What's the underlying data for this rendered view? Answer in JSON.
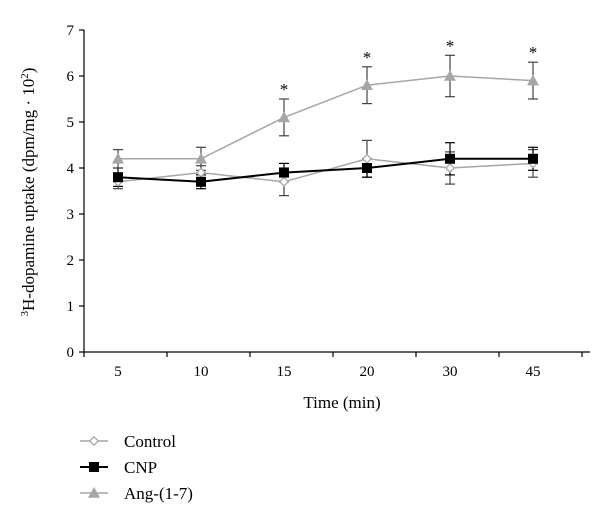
{
  "chart_data": {
    "type": "line",
    "x": [
      "5",
      "10",
      "15",
      "20",
      "30",
      "45"
    ],
    "xlabel": "Time (min)",
    "ylabel": {
      "superscript": "3",
      "text": "H-dopamine uptake (dpm/mg · 10",
      "superscript_end": "2",
      "close": ")"
    },
    "ylim": [
      0,
      7
    ],
    "yticks": [
      "0",
      "1",
      "2",
      "3",
      "4",
      "5",
      "6",
      "7"
    ],
    "grid": false,
    "legend_position": "bottom-left",
    "series": [
      {
        "name": "Control",
        "marker": "diamond-open",
        "color": "#a6a6a6",
        "values": [
          3.7,
          3.9,
          3.7,
          4.2,
          4.0,
          4.1
        ],
        "errors": [
          0.15,
          0.15,
          0.3,
          0.4,
          0.35,
          0.3
        ]
      },
      {
        "name": "CNP",
        "marker": "square-filled",
        "color": "#000000",
        "values": [
          3.8,
          3.7,
          3.9,
          4.0,
          4.2,
          4.2
        ],
        "errors": [
          0.2,
          0.15,
          0.2,
          0.2,
          0.35,
          0.25
        ]
      },
      {
        "name": "Ang-(1-7)",
        "marker": "triangle-filled",
        "color": "#a6a6a6",
        "values": [
          4.2,
          4.2,
          5.1,
          5.8,
          6.0,
          5.9
        ],
        "errors": [
          0.2,
          0.25,
          0.4,
          0.4,
          0.45,
          0.4
        ]
      }
    ],
    "annotations": [
      {
        "x": "15",
        "text": "*",
        "y": 5.5
      },
      {
        "x": "20",
        "text": "*",
        "y": 6.2
      },
      {
        "x": "30",
        "text": "*",
        "y": 6.45
      },
      {
        "x": "45",
        "text": "*",
        "y": 6.3
      }
    ]
  }
}
